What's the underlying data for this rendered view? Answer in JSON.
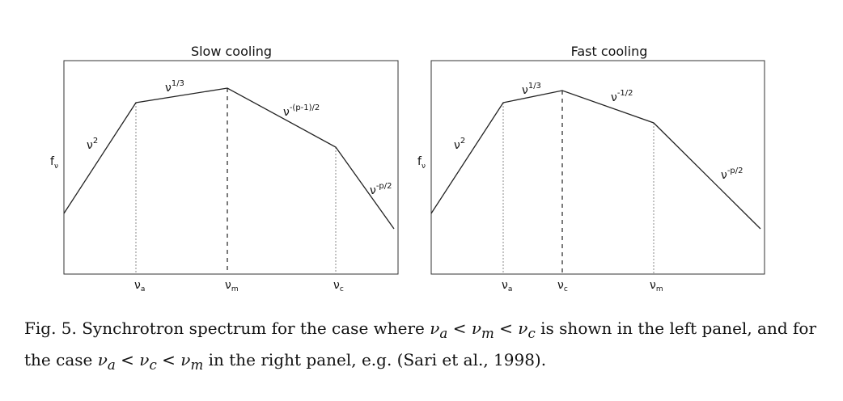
{
  "panels": [
    {
      "title": "Slow cooling",
      "ylabel": "f",
      "ylabel_sub": "ν",
      "segments": [
        {
          "base": "ν",
          "exp": "2"
        },
        {
          "base": "ν",
          "exp": "1/3"
        },
        {
          "base": "ν",
          "exp": "-(p-1)/2"
        },
        {
          "base": "ν",
          "exp": "-p/2"
        }
      ],
      "breaks": [
        {
          "base": "ν",
          "sub": "a",
          "style": "dotted"
        },
        {
          "base": "ν",
          "sub": "m",
          "style": "dashed"
        },
        {
          "base": "ν",
          "sub": "c",
          "style": "dotted"
        }
      ]
    },
    {
      "title": "Fast cooling",
      "ylabel": "f",
      "ylabel_sub": "ν",
      "segments": [
        {
          "base": "ν",
          "exp": "2"
        },
        {
          "base": "ν",
          "exp": "1/3"
        },
        {
          "base": "ν",
          "exp": "-1/2"
        },
        {
          "base": "ν",
          "exp": "-p/2"
        }
      ],
      "breaks": [
        {
          "base": "ν",
          "sub": "a",
          "style": "dotted"
        },
        {
          "base": "ν",
          "sub": "c",
          "style": "dashed"
        },
        {
          "base": "ν",
          "sub": "m",
          "style": "dotted"
        }
      ]
    }
  ],
  "caption": {
    "label": "Fig. 5.",
    "text_1": " Synchrotron spectrum for the case where ",
    "math_1": "ν",
    "math_1_sub": "a",
    "rel_1": " < ",
    "math_2": "ν",
    "math_2_sub": "m",
    "rel_2": " < ",
    "math_3": "ν",
    "math_3_sub": "c",
    "text_2": " is shown in the left panel, and for the case ",
    "math_4": "ν",
    "math_4_sub": "a",
    "rel_3": " < ",
    "math_5": "ν",
    "math_5_sub": "c",
    "rel_4": " < ",
    "math_6": "ν",
    "math_6_sub": "m",
    "text_3": " in the right panel, e.g. (Sari et al., 1998)."
  }
}
